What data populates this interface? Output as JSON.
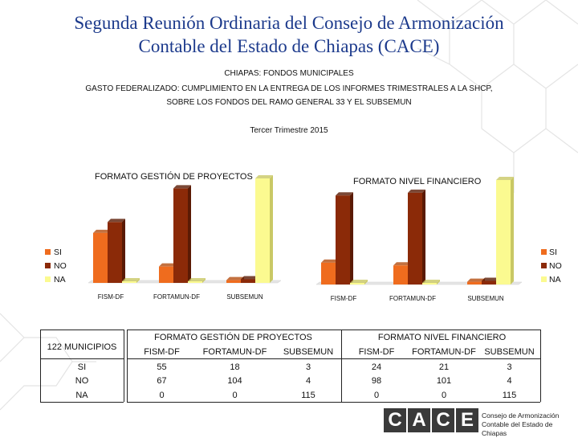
{
  "header": {
    "title_line1": "Segunda Reunión Ordinaria del Consejo de Armonización",
    "title_line2": "Contable del Estado de Chiapas (CACE)"
  },
  "subtitle": {
    "line1": "CHIAPAS: FONDOS MUNICIPALES",
    "line2": "GASTO FEDERALIZADO: CUMPLIMIENTO EN LA ENTREGA DE LOS INFORMES TRIMESTRALES A LA SHCP,",
    "line3": "SOBRE LOS FONDOS DEL RAMO GENERAL 33 Y EL SUBSEMUN",
    "period": "Tercer Trimestre 2015"
  },
  "colors": {
    "si": "#ef6c1e",
    "no": "#8b2a08",
    "na": "#fbfa90",
    "title": "#1c3a8c"
  },
  "chart_data": [
    {
      "type": "bar",
      "title": "FORMATO GESTIÓN DE PROYECTOS",
      "categories": [
        "FISM-DF",
        "FORTAMUN-DF",
        "SUBSEMUN"
      ],
      "series": [
        {
          "name": "SI",
          "values": [
            55,
            18,
            3
          ]
        },
        {
          "name": "NO",
          "values": [
            67,
            104,
            4
          ]
        },
        {
          "name": "NA",
          "values": [
            0,
            0,
            115
          ]
        }
      ],
      "ylim": [
        0,
        115
      ],
      "legend": "left",
      "grid": false
    },
    {
      "type": "bar",
      "title": "FORMATO NIVEL FINANCIERO",
      "categories": [
        "FISM-DF",
        "FORTAMUN-DF",
        "SUBSEMUN"
      ],
      "series": [
        {
          "name": "SI",
          "values": [
            24,
            21,
            3
          ]
        },
        {
          "name": "NO",
          "values": [
            98,
            101,
            4
          ]
        },
        {
          "name": "NA",
          "values": [
            0,
            0,
            115
          ]
        }
      ],
      "ylim": [
        0,
        115
      ],
      "legend": "right",
      "grid": false
    }
  ],
  "table": {
    "corner_label": "122 MUNICIPIOS",
    "group1_title": "FORMATO GESTIÓN DE PROYECTOS",
    "group2_title": "FORMATO NIVEL FINANCIERO",
    "columns": [
      "FISM-DF",
      "FORTAMUN-DF",
      "SUBSEMUN",
      "FISM-DF",
      "FORTAMUN-DF",
      "SUBSEMUN"
    ],
    "rows": [
      {
        "label": "SI",
        "values": [
          "55",
          "18",
          "3",
          "24",
          "21",
          "3"
        ]
      },
      {
        "label": "NO",
        "values": [
          "67",
          "104",
          "4",
          "98",
          "101",
          "4"
        ]
      },
      {
        "label": "NA",
        "values": [
          "0",
          "0",
          "115",
          "0",
          "0",
          "115"
        ]
      }
    ]
  },
  "logo": {
    "letters": [
      "C",
      "A",
      "C",
      "E"
    ],
    "text_line1": "Consejo de Armonización",
    "text_line2": "Contable del Estado de Chiapas"
  }
}
